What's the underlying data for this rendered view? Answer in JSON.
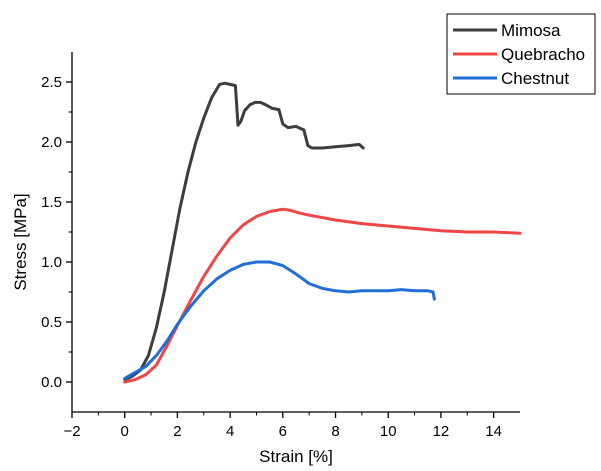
{
  "chart_data": {
    "type": "line",
    "title": "",
    "xlabel": "Strain [%]",
    "ylabel": "Stress [MPa]",
    "xlim": [
      -2,
      15
    ],
    "ylim": [
      -0.25,
      2.75
    ],
    "x_ticks": [
      -2,
      0,
      2,
      4,
      6,
      8,
      10,
      12,
      14
    ],
    "x_tick_labels": [
      "−2",
      "0",
      "2",
      "4",
      "6",
      "8",
      "10",
      "12",
      "14"
    ],
    "y_ticks": [
      0.0,
      0.5,
      1.0,
      1.5,
      2.0,
      2.5
    ],
    "y_tick_labels": [
      "0.0",
      "0.5",
      "1.0",
      "1.5",
      "2.0",
      "2.5"
    ],
    "grid": false,
    "legend_position": "top-right",
    "series": [
      {
        "name": "Mimosa",
        "color": "#3d3d3d",
        "x": [
          0,
          0.3,
          0.6,
          0.9,
          1.2,
          1.5,
          1.8,
          2.1,
          2.4,
          2.7,
          3.0,
          3.3,
          3.6,
          3.8,
          4.0,
          4.2,
          4.3,
          4.4,
          4.55,
          4.75,
          4.95,
          5.15,
          5.35,
          5.6,
          5.85,
          6.0,
          6.2,
          6.5,
          6.8,
          6.95,
          7.1,
          7.5,
          8.0,
          8.5,
          8.9,
          9.05
        ],
        "y": [
          0.02,
          0.05,
          0.1,
          0.22,
          0.45,
          0.75,
          1.1,
          1.45,
          1.75,
          2.0,
          2.2,
          2.37,
          2.48,
          2.49,
          2.48,
          2.47,
          2.14,
          2.17,
          2.26,
          2.31,
          2.33,
          2.33,
          2.31,
          2.28,
          2.27,
          2.15,
          2.12,
          2.13,
          2.1,
          1.97,
          1.95,
          1.95,
          1.96,
          1.97,
          1.98,
          1.95
        ]
      },
      {
        "name": "Quebracho",
        "color": "#ee4646",
        "x": [
          0,
          0.4,
          0.8,
          1.2,
          1.6,
          2.0,
          2.5,
          3.0,
          3.5,
          4.0,
          4.5,
          5.0,
          5.5,
          6.0,
          6.3,
          6.6,
          7.0,
          8.0,
          9.0,
          10.0,
          11.0,
          12.0,
          13.0,
          14.0,
          15.0
        ],
        "y": [
          0.0,
          0.02,
          0.06,
          0.14,
          0.3,
          0.47,
          0.68,
          0.88,
          1.05,
          1.2,
          1.31,
          1.38,
          1.42,
          1.44,
          1.43,
          1.41,
          1.39,
          1.35,
          1.32,
          1.3,
          1.28,
          1.26,
          1.25,
          1.25,
          1.24
        ]
      },
      {
        "name": "Chestnut",
        "color": "#1f6fd6",
        "x": [
          0,
          0.4,
          0.8,
          1.2,
          1.6,
          2.0,
          2.5,
          3.0,
          3.5,
          4.0,
          4.5,
          5.0,
          5.5,
          6.0,
          6.5,
          7.0,
          7.5,
          8.0,
          8.5,
          9.0,
          9.5,
          10.0,
          10.5,
          11.0,
          11.5,
          11.7,
          11.75
        ],
        "y": [
          0.03,
          0.08,
          0.13,
          0.22,
          0.34,
          0.48,
          0.63,
          0.76,
          0.86,
          0.93,
          0.98,
          1.0,
          1.0,
          0.97,
          0.9,
          0.82,
          0.78,
          0.76,
          0.75,
          0.76,
          0.76,
          0.76,
          0.77,
          0.76,
          0.76,
          0.75,
          0.69
        ]
      }
    ]
  }
}
